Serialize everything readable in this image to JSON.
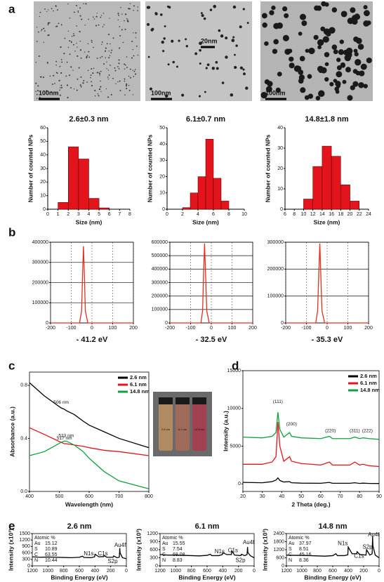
{
  "panel_labels": [
    "a",
    "b",
    "c",
    "d",
    "e"
  ],
  "tem_scale_labels": [
    "100nm",
    "20nm",
    "100nm",
    "100nm"
  ],
  "chart_data": [
    {
      "type": "histogram",
      "title": "2.6±0.3 nm",
      "xlabel": "Size (nm)",
      "ylabel": "Number of counted NPs",
      "color": "#e3141c",
      "bins": [
        1,
        2,
        3,
        4,
        5,
        6
      ],
      "values": [
        5,
        46,
        37,
        8,
        1
      ],
      "xlim": [
        0,
        8
      ],
      "xticks": [
        0,
        1,
        2,
        3,
        4,
        5,
        6,
        7,
        8
      ],
      "ylim": [
        0,
        60
      ],
      "yticks": [
        0,
        10,
        20,
        30,
        40,
        50,
        60
      ]
    },
    {
      "type": "histogram",
      "title": "6.1±0.7 nm",
      "xlabel": "Size (nm)",
      "ylabel": "Number of counted NPs",
      "color": "#e3141c",
      "bins": [
        2,
        3,
        4,
        5,
        6,
        7,
        8
      ],
      "values": [
        1,
        10,
        20,
        43,
        19,
        5
      ],
      "xlim": [
        0,
        10
      ],
      "xticks": [
        0,
        2,
        4,
        6,
        8,
        10
      ],
      "ylim": [
        0,
        50
      ],
      "yticks": [
        0,
        10,
        20,
        30,
        40,
        50
      ]
    },
    {
      "type": "histogram",
      "title": "14.8±1.8 nm",
      "xlabel": "Size (nm)",
      "ylabel": "Number of counted NPs",
      "color": "#e3141c",
      "bins": [
        10,
        12,
        14,
        16,
        18,
        20,
        22
      ],
      "values": [
        5,
        21,
        31,
        26,
        12,
        4
      ],
      "xlim": [
        6,
        24
      ],
      "xticks": [
        6,
        8,
        10,
        12,
        14,
        16,
        18,
        20,
        22,
        24
      ],
      "ylim": [
        0,
        40
      ],
      "yticks": [
        0,
        10,
        20,
        30,
        40
      ]
    },
    {
      "type": "line",
      "title": "- 41.2 eV",
      "grid": true,
      "color": "#e03020",
      "x": [
        -200,
        -60,
        -50,
        -45,
        -41.2,
        -37,
        -32,
        -20,
        200
      ],
      "values": [
        0,
        0,
        60000,
        250000,
        380000,
        250000,
        60000,
        0,
        0
      ],
      "xlim": [
        -200,
        200
      ],
      "xticks": [
        -200,
        -100,
        0,
        100,
        200
      ],
      "ylim": [
        0,
        400000
      ],
      "yticks": [
        0,
        100000,
        200000,
        300000,
        400000
      ]
    },
    {
      "type": "line",
      "title": "- 32.5 eV",
      "grid": true,
      "color": "#e03020",
      "x": [
        -200,
        -50,
        -42,
        -37,
        -32.5,
        -28,
        -22,
        -10,
        200
      ],
      "values": [
        0,
        0,
        90000,
        380000,
        590000,
        380000,
        90000,
        0,
        0
      ],
      "xlim": [
        -200,
        200
      ],
      "xticks": [
        -200,
        -100,
        0,
        100,
        200
      ],
      "ylim": [
        0,
        600000
      ],
      "yticks": [
        0,
        100000,
        200000,
        300000,
        400000,
        500000,
        600000
      ]
    },
    {
      "type": "line",
      "title": "- 35.3 eV",
      "grid": true,
      "color": "#e03020",
      "x": [
        -200,
        -55,
        -46,
        -40,
        -35.3,
        -31,
        -25,
        -12,
        200
      ],
      "values": [
        0,
        0,
        45000,
        190000,
        295000,
        190000,
        45000,
        0,
        0
      ],
      "xlim": [
        -200,
        200
      ],
      "xticks": [
        -200,
        -100,
        0,
        100,
        200
      ],
      "ylim": [
        0,
        300000
      ],
      "yticks": [
        0,
        100000,
        200000,
        300000
      ]
    },
    {
      "type": "line",
      "xlabel": "Wavelength (nm)",
      "ylabel": "Absorbance (a.u.)",
      "legend": "upper right",
      "x": [
        400,
        450,
        506,
        517,
        523,
        550,
        580,
        600,
        650,
        700,
        800
      ],
      "series": [
        {
          "name": "2.6 nm",
          "color": "#000000",
          "values": [
            0.82,
            0.72,
            0.63,
            0.62,
            0.61,
            0.58,
            0.53,
            0.5,
            0.45,
            0.4,
            0.33
          ]
        },
        {
          "name": "6.1 nm",
          "color": "#e3141c",
          "values": [
            0.48,
            0.43,
            0.37,
            0.36,
            0.36,
            0.35,
            0.34,
            0.33,
            0.31,
            0.3,
            0.27
          ]
        },
        {
          "name": "14.8 nm",
          "color": "#10a040",
          "values": [
            0.27,
            0.3,
            0.37,
            0.38,
            0.38,
            0.35,
            0.3,
            0.25,
            0.15,
            0.08,
            0.02
          ]
        }
      ],
      "annotations": [
        "506 nm",
        "517 nm",
        "523 nm"
      ],
      "inset_labels": [
        "2.6 nm",
        "6.1 nm",
        "14.8 nm"
      ],
      "xlim": [
        400,
        800
      ],
      "xticks": [
        400,
        500,
        600,
        700,
        800
      ],
      "ylim": [
        0,
        0.9
      ],
      "yticks": [
        {
          "value": 0,
          "label": "0.0"
        },
        {
          "value": 0.4,
          "label": "0.4"
        },
        {
          "value": 0.8,
          "label": "0.8"
        }
      ]
    },
    {
      "type": "line",
      "xlabel": "2 Theta (deg.)",
      "ylabel": "Intensity (a.u.)",
      "legend": "upper right",
      "x": [
        20,
        30,
        35,
        37,
        38,
        39,
        41,
        44,
        45,
        50,
        60,
        64.5,
        66,
        75,
        77.5,
        80,
        81.7,
        85,
        90
      ],
      "series": [
        {
          "name": "2.6 nm",
          "color": "#000000",
          "values": [
            200,
            150,
            300,
            500,
            800,
            450,
            250,
            300,
            150,
            100,
            80,
            200,
            80,
            80,
            150,
            60,
            100,
            60,
            50
          ]
        },
        {
          "name": "6.1 nm",
          "color": "#e3141c",
          "values": [
            2600,
            2600,
            2900,
            3600,
            8200,
            5000,
            3000,
            3600,
            3000,
            2700,
            2500,
            2900,
            2500,
            2500,
            2900,
            2500,
            2600,
            2400,
            2300
          ]
        },
        {
          "name": "14.8 nm",
          "color": "#10a040",
          "values": [
            6200,
            6100,
            6300,
            6800,
            9500,
            7200,
            6200,
            6800,
            6300,
            6100,
            6000,
            6300,
            6000,
            6000,
            6200,
            6000,
            6100,
            6000,
            5900
          ]
        }
      ],
      "annotations": [
        "(111)",
        "(200)",
        "(220)",
        "(311)",
        "(222)"
      ],
      "xlim": [
        20,
        90
      ],
      "xticks": [
        20,
        30,
        40,
        50,
        60,
        70,
        80,
        90
      ],
      "ylim": [
        -1000,
        15000
      ],
      "yticks": [
        0,
        5000,
        10000,
        15000
      ]
    },
    {
      "type": "line",
      "title": "2.6 nm",
      "xlabel": "Binding Energy (eV)",
      "ylabel": "Intensity (x10³)",
      "color": "#000000",
      "x": [
        1200,
        1100,
        1000,
        900,
        800,
        700,
        600,
        560,
        540,
        450,
        405,
        400,
        350,
        290,
        285,
        250,
        170,
        162,
        120,
        90,
        84,
        80,
        50,
        0
      ],
      "values": [
        420,
        400,
        410,
        400,
        390,
        380,
        400,
        450,
        390,
        380,
        420,
        540,
        420,
        430,
        480,
        400,
        400,
        460,
        380,
        400,
        830,
        600,
        380,
        330
      ],
      "annotations": [
        "N1s",
        "C1s",
        "S2p",
        "Au4f"
      ],
      "composition": {
        "heading": "Atomic %",
        "rows": [
          {
            "element": "Au",
            "value": 15.12
          },
          {
            "element": "S",
            "value": 10.89
          },
          {
            "element": "C",
            "value": 63.55
          },
          {
            "element": "N",
            "value": 10.44
          }
        ]
      },
      "xlim": [
        1200,
        0
      ],
      "xticks": [
        1200,
        1000,
        800,
        600,
        400,
        200,
        0
      ],
      "ylim": [
        0,
        1500
      ],
      "yticks": [
        0,
        300,
        600,
        900,
        1200,
        1500
      ]
    },
    {
      "type": "line",
      "title": "6.1 nm",
      "xlabel": "Binding Energy (eV)",
      "ylabel": "Intensity (x10³)",
      "color": "#000000",
      "x": [
        1200,
        1100,
        1000,
        900,
        800,
        700,
        600,
        560,
        540,
        450,
        405,
        400,
        350,
        290,
        285,
        250,
        170,
        162,
        120,
        90,
        84,
        80,
        50,
        0
      ],
      "values": [
        420,
        400,
        400,
        390,
        380,
        370,
        390,
        430,
        380,
        380,
        420,
        490,
        420,
        420,
        560,
        400,
        380,
        430,
        380,
        420,
        700,
        500,
        380,
        300
      ],
      "annotations": [
        "N1s",
        "C1s",
        "S2p",
        "Au4f"
      ],
      "composition": {
        "heading": "Atomic %",
        "rows": [
          {
            "element": "Au",
            "value": 15.55
          },
          {
            "element": "S",
            "value": 7.54
          },
          {
            "element": "C",
            "value": 68.08
          },
          {
            "element": "N",
            "value": 8.83
          }
        ]
      },
      "xlim": [
        1200,
        0
      ],
      "xticks": [
        1200,
        1000,
        800,
        600,
        400,
        200,
        0
      ],
      "ylim": [
        0,
        1200
      ],
      "yticks": [
        0,
        300,
        600,
        900,
        1200
      ]
    },
    {
      "type": "line",
      "title": "14.8 nm",
      "xlabel": "Binding Energy (eV)",
      "ylabel": "Intensity (x10³)",
      "color": "#000000",
      "x": [
        1200,
        1100,
        1000,
        900,
        800,
        700,
        600,
        560,
        540,
        450,
        405,
        400,
        350,
        290,
        285,
        250,
        170,
        162,
        120,
        90,
        84,
        80,
        50,
        0
      ],
      "values": [
        800,
        780,
        780,
        760,
        740,
        720,
        760,
        900,
        760,
        760,
        820,
        1400,
        900,
        900,
        1050,
        850,
        800,
        1200,
        800,
        900,
        2200,
        1500,
        800,
        600
      ],
      "annotations": [
        "N1s",
        "C1s",
        "S2p",
        "Au4f"
      ],
      "composition": {
        "heading": "Atomic %",
        "rows": [
          {
            "element": "Au",
            "value": 37.97
          },
          {
            "element": "S",
            "value": 8.51
          },
          {
            "element": "C",
            "value": 45.16
          },
          {
            "element": "N",
            "value": 8.36
          }
        ]
      },
      "xlim": [
        1200,
        0
      ],
      "xticks": [
        1200,
        1000,
        800,
        600,
        400,
        200,
        0
      ],
      "ylim": [
        0,
        2400
      ],
      "yticks": [
        0,
        600,
        1200,
        1800,
        2400
      ]
    }
  ]
}
